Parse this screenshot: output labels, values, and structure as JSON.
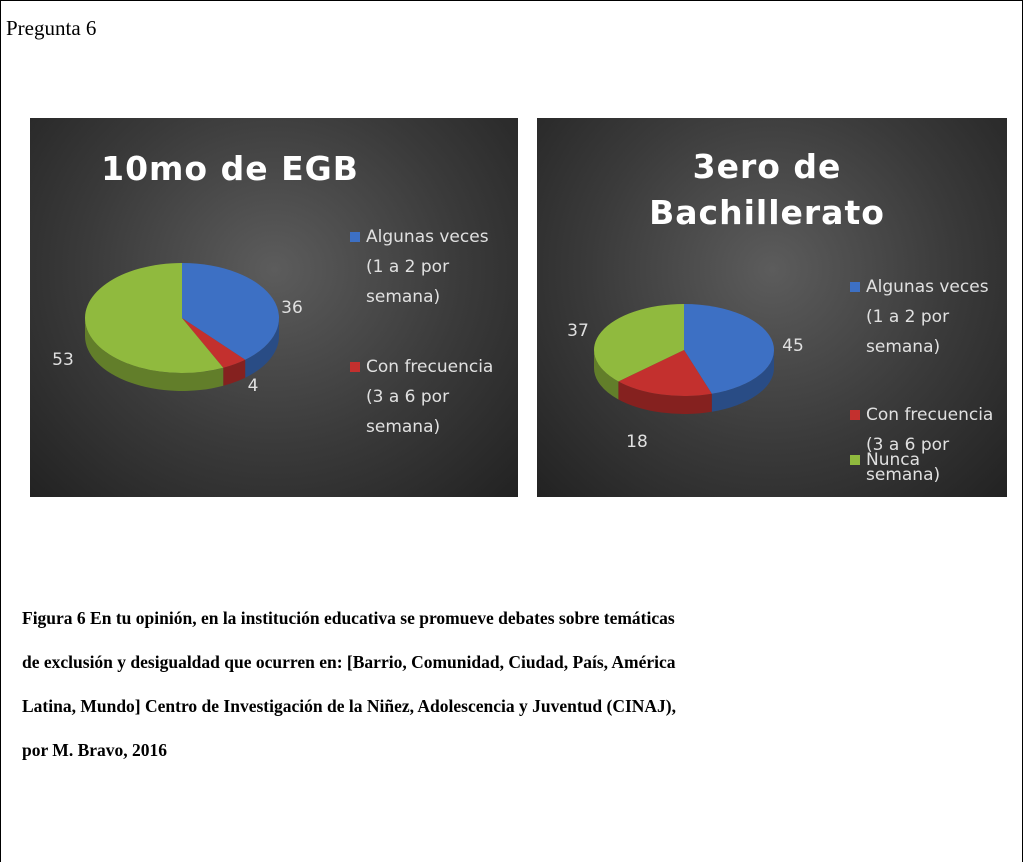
{
  "heading": "Pregunta 6",
  "chart_data": [
    {
      "type": "pie",
      "title": "10mo de EGB",
      "categories": [
        "Algunas veces (1 a 2 por semana)",
        "Con frecuencia (3 a 6 por semana)",
        null
      ],
      "values": [
        36,
        4,
        53
      ],
      "colors": [
        "#3d70c4",
        "#c3302e",
        "#90ba3e"
      ]
    },
    {
      "type": "pie",
      "title": "3ero de Bachillerato",
      "categories": [
        "Algunas veces (1 a 2 por semana)",
        "Con frecuencia (3 a 6 por semana)",
        "Nunca"
      ],
      "values": [
        45,
        18,
        37
      ],
      "colors": [
        "#3d70c4",
        "#c3302e",
        "#90ba3e"
      ]
    }
  ],
  "caption": [
    "Figura 6  En tu opinión, en  la institución educativa se promueve debates  sobre temáticas",
    "de exclusión y desigualdad que ocurren en: [Barrio, Comunidad, Ciudad, País, América",
    "Latina, Mundo] Centro de Investigación de la Niñez, Adolescencia y Juventud (CINAJ),",
    "por M. Bravo, 2016"
  ]
}
